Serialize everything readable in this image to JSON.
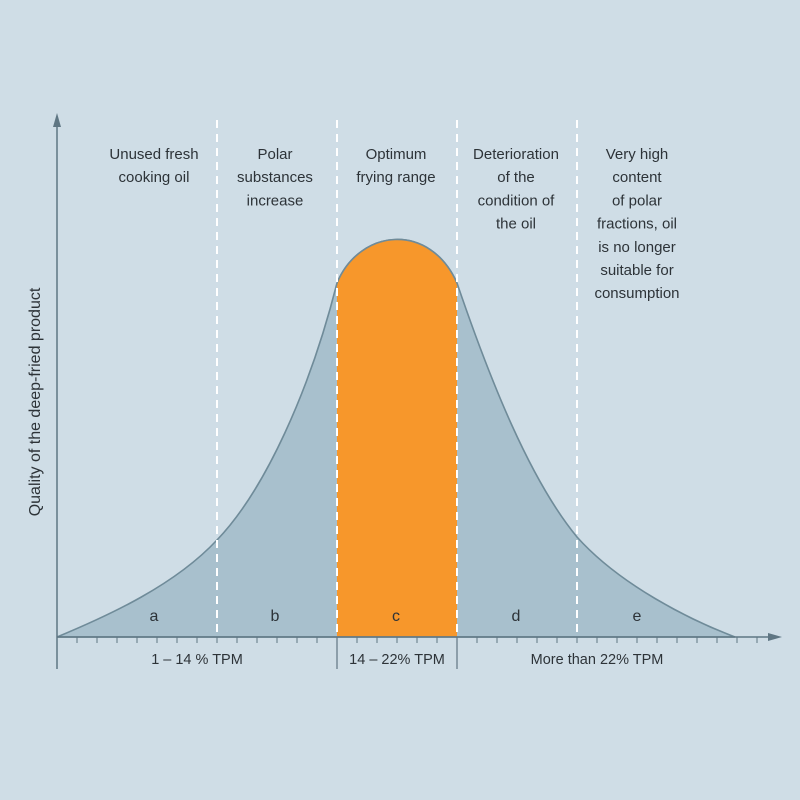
{
  "colors": {
    "background": "#cfdde6",
    "curve_fill": "#a8c0cd",
    "curve_stroke": "#6f8b99",
    "optimum_fill": "#f7972b",
    "divider": "#ffffff",
    "axis": "#5f7683",
    "text": "#2d3338"
  },
  "chart_data": {
    "type": "area",
    "title": "",
    "ylabel": "Quality of the deep-fried product",
    "xlabel": "",
    "grid": false,
    "zones": [
      {
        "letter": "a",
        "description": [
          "Unused fresh",
          "cooking oil"
        ]
      },
      {
        "letter": "b",
        "description": [
          "Polar",
          "substances",
          "increase"
        ]
      },
      {
        "letter": "c",
        "description": [
          "Optimum",
          "frying range"
        ],
        "highlight": true
      },
      {
        "letter": "d",
        "description": [
          "Deterioration",
          "of the",
          "condition of",
          "the oil"
        ]
      },
      {
        "letter": "e",
        "description": [
          "Very high",
          "content",
          "of polar",
          "fractions, oil",
          "is no longer",
          "suitable for",
          "consumption"
        ]
      }
    ],
    "tpm_ranges": [
      {
        "label": "1 – 14 % TPM"
      },
      {
        "label": "14 – 22% TPM"
      },
      {
        "label": "More than 22% TPM"
      }
    ]
  }
}
